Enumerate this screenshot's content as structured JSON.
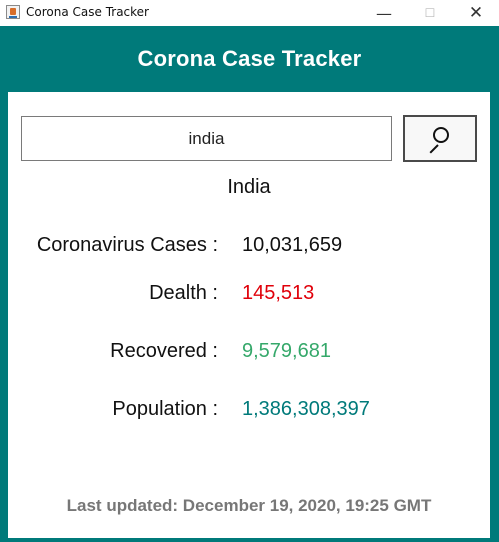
{
  "window": {
    "title": "Corona Case Tracker",
    "controls": {
      "minimize": "—",
      "maximize": "☐",
      "close": "✕"
    }
  },
  "header": {
    "title": "Corona Case Tracker",
    "color": "#007a7a"
  },
  "search": {
    "value": "india",
    "button_icon": "search-icon"
  },
  "country": {
    "name": "India"
  },
  "stats": [
    {
      "label": "Coronavirus Cases  :",
      "value": "10,031,659",
      "color": "#111111"
    },
    {
      "label": "Dealth  :",
      "value": "145,513",
      "color": "#e0000a"
    },
    {
      "label": "Recovered  :",
      "value": "9,579,681",
      "color": "#35a86a"
    },
    {
      "label": "Population  :",
      "value": "1,386,308,397",
      "color": "#007a7a"
    }
  ],
  "footer": {
    "text": "Last updated: December 19, 2020, 19:25 GMT"
  }
}
